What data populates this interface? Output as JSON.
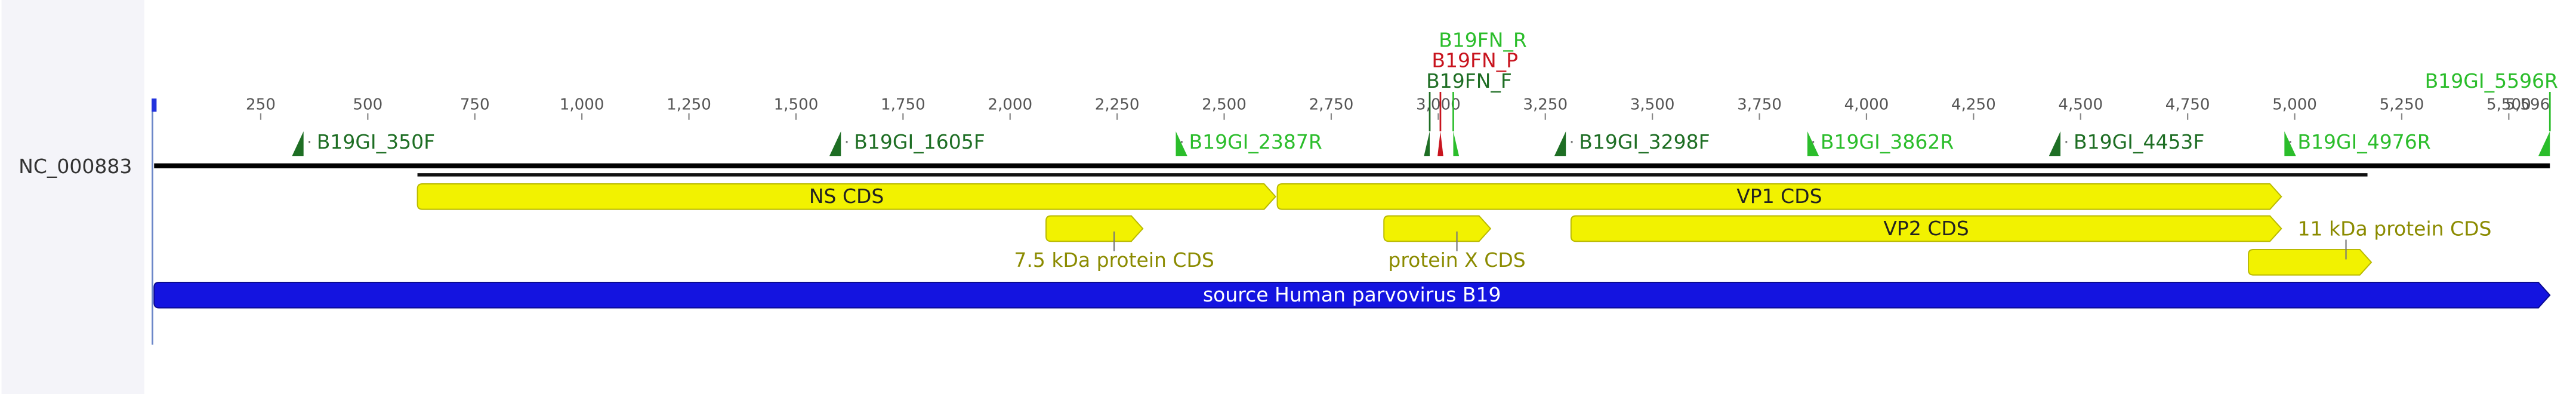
{
  "sequence": {
    "name": "NC_000883",
    "range": [
      1,
      5596
    ]
  },
  "coding_region": [
    616,
    5170
  ],
  "ruler": {
    "ticks": [
      1,
      250,
      500,
      750,
      {
        "value": 1000,
        "label": "1,000"
      },
      {
        "value": 1250,
        "label": "1,250"
      },
      {
        "value": 1500,
        "label": "1,500"
      },
      {
        "value": 1750,
        "label": "1,750"
      },
      {
        "value": 2000,
        "label": "2,000"
      },
      {
        "value": 2250,
        "label": "2,250"
      },
      {
        "value": 2500,
        "label": "2,500"
      },
      {
        "value": 2750,
        "label": "2,750"
      },
      {
        "value": 3000,
        "label": "3,000"
      },
      {
        "value": 3250,
        "label": "3,250"
      },
      {
        "value": 3500,
        "label": "3,500"
      },
      {
        "value": 3750,
        "label": "3,750"
      },
      {
        "value": 4000,
        "label": "4,000"
      },
      {
        "value": 4250,
        "label": "4,250"
      },
      {
        "value": 4500,
        "label": "4,500"
      },
      {
        "value": 4750,
        "label": "4,750"
      },
      {
        "value": 5000,
        "label": "5,000"
      },
      {
        "value": 5250,
        "label": "5,250"
      },
      {
        "value": 5500,
        "label": "5,500"
      },
      {
        "value": 5596,
        "label": "5,596"
      }
    ]
  },
  "primers": [
    {
      "name": "B19GI_350F",
      "position": 350,
      "strand": "F",
      "color": "#1e6e24"
    },
    {
      "name": "B19GI_1605F",
      "position": 1605,
      "strand": "F",
      "color": "#1e6e24"
    },
    {
      "name": "B19GI_2387R",
      "position": 2387,
      "strand": "R",
      "color": "#2bbd2b"
    },
    {
      "name": "B19FN_F",
      "position": 2980,
      "strand": "F",
      "color": "#1e6e24"
    },
    {
      "name": "B19FN_P",
      "position": 3005,
      "strand": "P",
      "color": "#c8141e"
    },
    {
      "name": "B19FN_R",
      "position": 3035,
      "strand": "R",
      "color": "#2bbd2b"
    },
    {
      "name": "B19GI_3298F",
      "position": 3298,
      "strand": "F",
      "color": "#1e6e24"
    },
    {
      "name": "B19GI_3862R",
      "position": 3862,
      "strand": "R",
      "color": "#2bbd2b"
    },
    {
      "name": "B19GI_4453F",
      "position": 4453,
      "strand": "F",
      "color": "#1e6e24"
    },
    {
      "name": "B19GI_4976R",
      "position": 4976,
      "strand": "R",
      "color": "#2bbd2b"
    },
    {
      "name": "B19GI_5596R",
      "position": 5596,
      "strand": "R",
      "color": "#2bbd2b"
    }
  ],
  "features": [
    {
      "label": "NS CDS",
      "start": 616,
      "end": 2620,
      "color": "#f2f200"
    },
    {
      "label": "VP1 CDS",
      "start": 2624,
      "end": 4969,
      "color": "#f2f200"
    },
    {
      "label": "7.5 kDa protein CDS",
      "start": 2084,
      "end": 2310,
      "color": "#f2f200"
    },
    {
      "label": "protein X CDS",
      "start": 2873,
      "end": 3122,
      "color": "#f2f200"
    },
    {
      "label": "VP2 CDS",
      "start": 3310,
      "end": 4969,
      "color": "#f2f200"
    },
    {
      "label": "11 kDa protein CDS",
      "start": 4892,
      "end": 5179,
      "color": "#f2f200"
    },
    {
      "label": "source Human parvovirus B19",
      "start": 1,
      "end": 5596,
      "color": "#1414e0"
    }
  ]
}
